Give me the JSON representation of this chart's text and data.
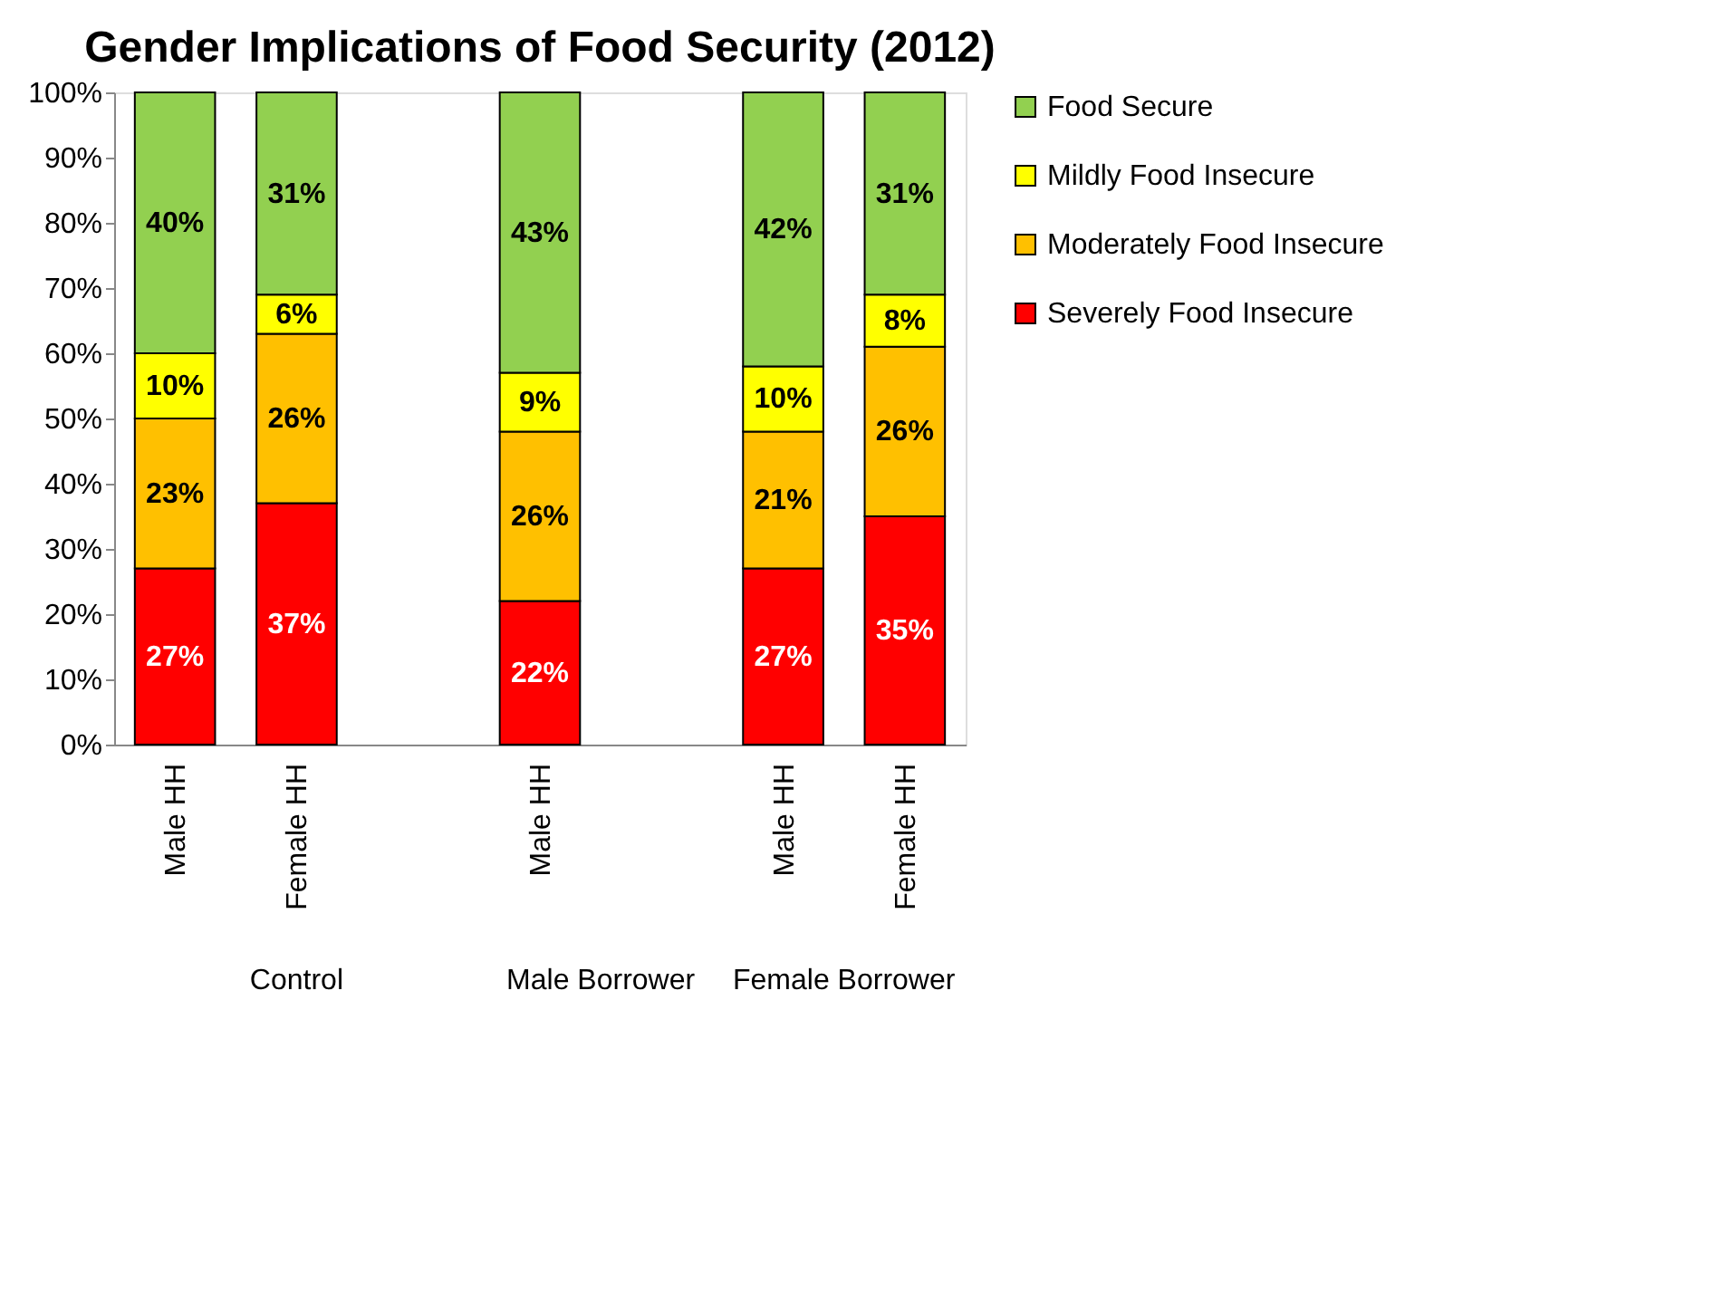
{
  "chart_data": {
    "type": "bar",
    "stacked": true,
    "title": "Gender Implications of Food Security (2012)",
    "categories": [
      "Male HH",
      "Female HH",
      null,
      "Male HH",
      null,
      "Male HH",
      "Female HH"
    ],
    "series": [
      {
        "name": "Severely Food Insecure",
        "color": "#ff0000",
        "values": [
          27,
          37,
          null,
          22,
          null,
          27,
          35
        ],
        "value_labels": [
          "27%",
          "37%",
          null,
          "22%",
          null,
          "27%",
          "35%"
        ]
      },
      {
        "name": "Moderately Food Insecure",
        "color": "#ffc000",
        "values": [
          23,
          26,
          null,
          26,
          null,
          21,
          26
        ],
        "value_labels": [
          "23%",
          "26%",
          null,
          "26%",
          null,
          "21%",
          "26%"
        ]
      },
      {
        "name": "Mildly Food Insecure",
        "color": "#ffff00",
        "values": [
          10,
          6,
          null,
          9,
          null,
          10,
          8
        ],
        "value_labels": [
          "10%",
          "6%",
          null,
          "9%",
          null,
          "10%",
          "8%"
        ]
      },
      {
        "name": "Food Secure",
        "color": "#92d050",
        "values": [
          40,
          31,
          null,
          43,
          null,
          42,
          31
        ],
        "value_labels": [
          "40%",
          "31%",
          null,
          "43%",
          null,
          "42%",
          "31%"
        ]
      }
    ],
    "annotations": [
      "Control",
      "Male Borrower",
      "Female Borrower"
    ],
    "ylim": [
      0,
      100
    ],
    "yticks": [
      {
        "value": 0,
        "label": "0%"
      },
      {
        "value": 10,
        "label": "10%"
      },
      {
        "value": 20,
        "label": "20%"
      },
      {
        "value": 30,
        "label": "30%"
      },
      {
        "value": 40,
        "label": "40%"
      },
      {
        "value": 50,
        "label": "50%"
      },
      {
        "value": 60,
        "label": "60%"
      },
      {
        "value": 70,
        "label": "70%"
      },
      {
        "value": 80,
        "label": "80%"
      },
      {
        "value": 90,
        "label": "90%"
      },
      {
        "value": 100,
        "label": "100%"
      }
    ],
    "grid": false,
    "legend": "right"
  }
}
